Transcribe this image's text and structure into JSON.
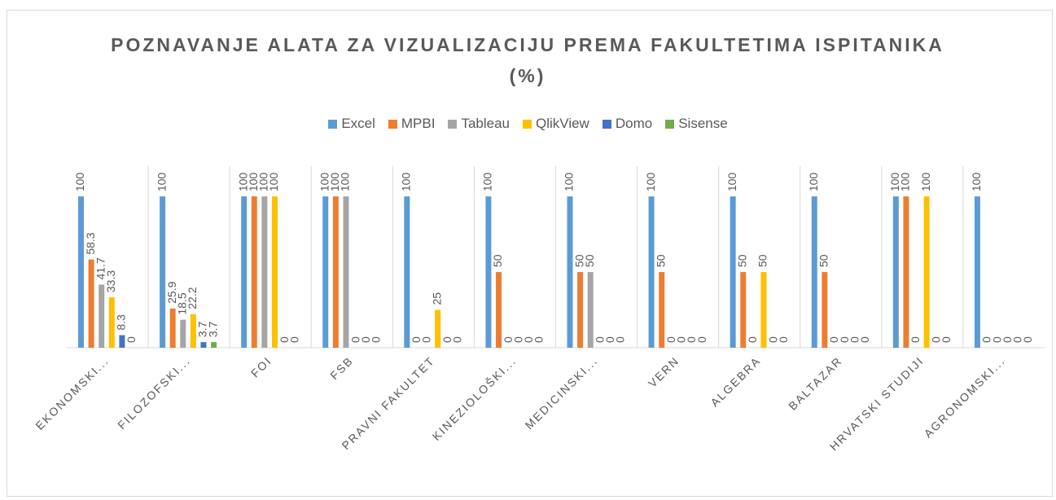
{
  "chart_data": {
    "type": "bar",
    "title": "POZNAVANJE ALATA ZA VIZUALIZACIJU PREMA FAKULTETIMA ISPITANIKA (%)",
    "categories": [
      "EKONOMSKI...",
      "FILOZOFSKI...",
      "FOI",
      "FSB",
      "PRAVNI FAKULTET",
      "KINEZIOLOŠKI...",
      "MEDICINSKI...",
      "VERN",
      "ALGEBRA",
      "BALTAZAR",
      "HRVATSKI STUDIJI",
      "AGRONOMSKI..."
    ],
    "series": [
      {
        "name": "Excel",
        "color": "#5b9bd5",
        "values": [
          100,
          100,
          100,
          100,
          100,
          100,
          100,
          100,
          100,
          100,
          100,
          100
        ]
      },
      {
        "name": "MPBI",
        "color": "#ed7d31",
        "values": [
          58.3,
          25.9,
          100,
          100,
          0,
          50,
          50,
          50,
          50,
          50,
          100,
          0
        ]
      },
      {
        "name": "Tableau",
        "color": "#a5a5a5",
        "values": [
          41.7,
          18.5,
          100,
          100,
          0,
          0,
          50,
          0,
          0,
          0,
          0,
          0
        ]
      },
      {
        "name": "QlikView",
        "color": "#ffc000",
        "values": [
          33.3,
          22.2,
          100,
          0,
          25,
          0,
          0,
          0,
          50,
          0,
          100,
          0
        ]
      },
      {
        "name": "Domo",
        "color": "#4472c4",
        "values": [
          8.3,
          3.7,
          0,
          0,
          0,
          0,
          0,
          0,
          0,
          0,
          0,
          0
        ]
      },
      {
        "name": "Sisense",
        "color": "#70ad47",
        "values": [
          0,
          3.7,
          0,
          0,
          0,
          0,
          0,
          0,
          0,
          0,
          0,
          0
        ]
      }
    ],
    "ylim": [
      0,
      120
    ],
    "legend": "top",
    "data_labels": true
  }
}
